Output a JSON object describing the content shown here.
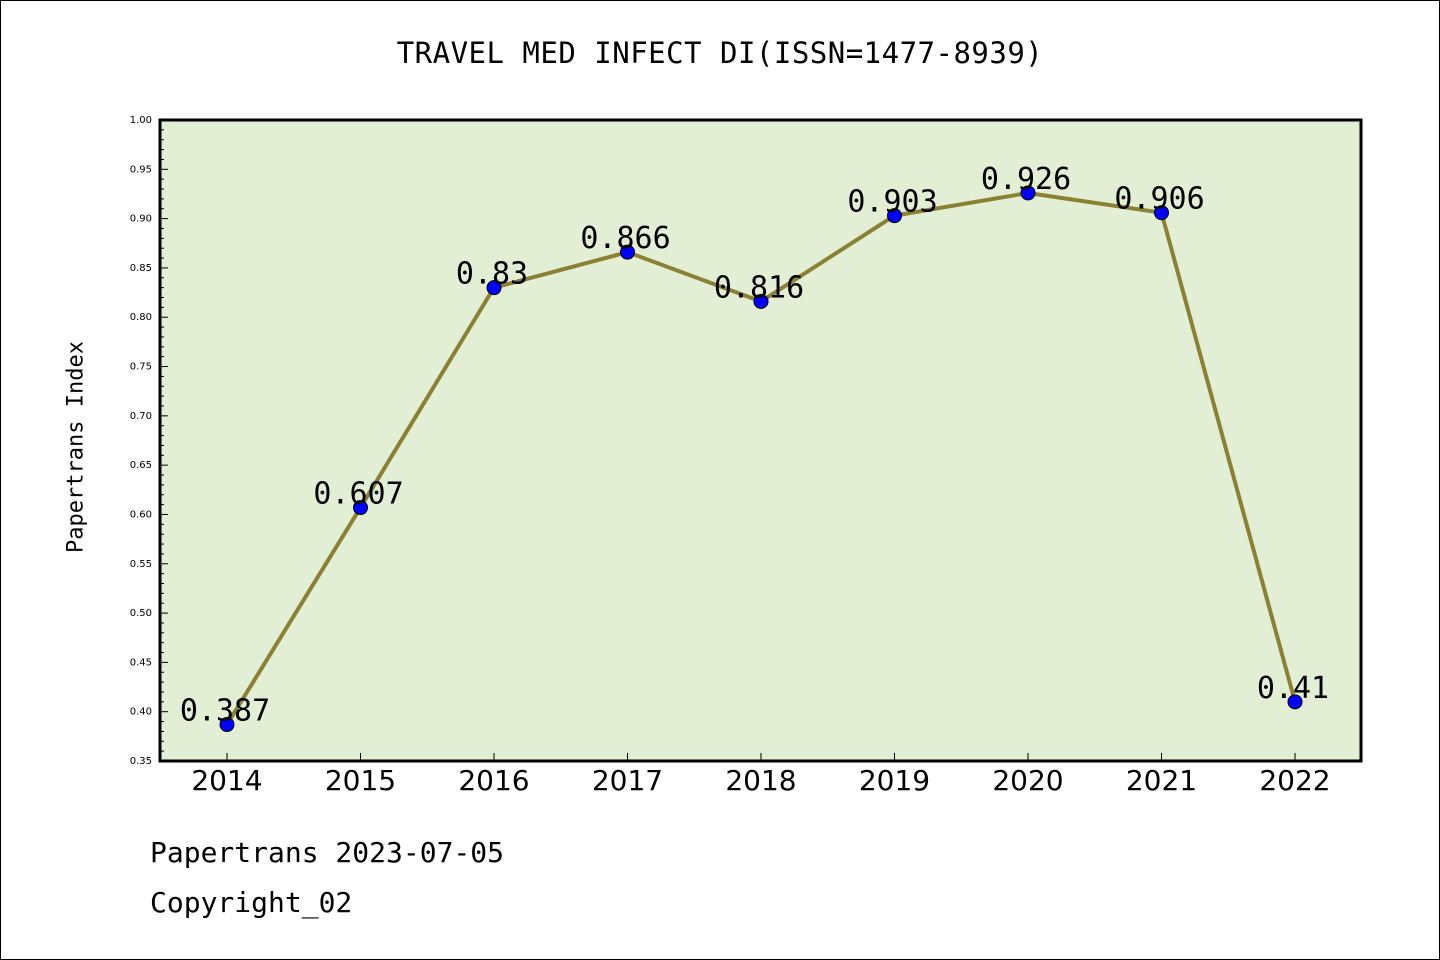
{
  "chart_data": {
    "type": "line",
    "title": "TRAVEL MED INFECT DI(ISSN=1477-8939)",
    "xlabel": "",
    "ylabel": "Papertrans Index",
    "categories": [
      "2014",
      "2015",
      "2016",
      "2017",
      "2018",
      "2019",
      "2020",
      "2021",
      "2022"
    ],
    "values": [
      0.387,
      0.607,
      0.83,
      0.866,
      0.816,
      0.903,
      0.926,
      0.906,
      0.41
    ],
    "data_labels": [
      "0.387",
      "0.607",
      "0.83",
      "0.866",
      "0.816",
      "0.903",
      "0.926",
      "0.906",
      "0.41"
    ],
    "ylim": [
      0.35,
      1.0
    ],
    "yticks": [
      "0.35",
      "0.40",
      "0.45",
      "0.50",
      "0.55",
      "0.60",
      "0.65",
      "0.70",
      "0.75",
      "0.80",
      "0.85",
      "0.90",
      "0.95",
      "1.00"
    ],
    "grid": false,
    "legend": "none",
    "colors": {
      "plot_background": "#e2efd5",
      "line": "#8b8134",
      "marker": "#0000ff"
    }
  },
  "footer": {
    "date_text": "Papertrans 2023-07-05",
    "copyright_text": "Copyright_02"
  }
}
